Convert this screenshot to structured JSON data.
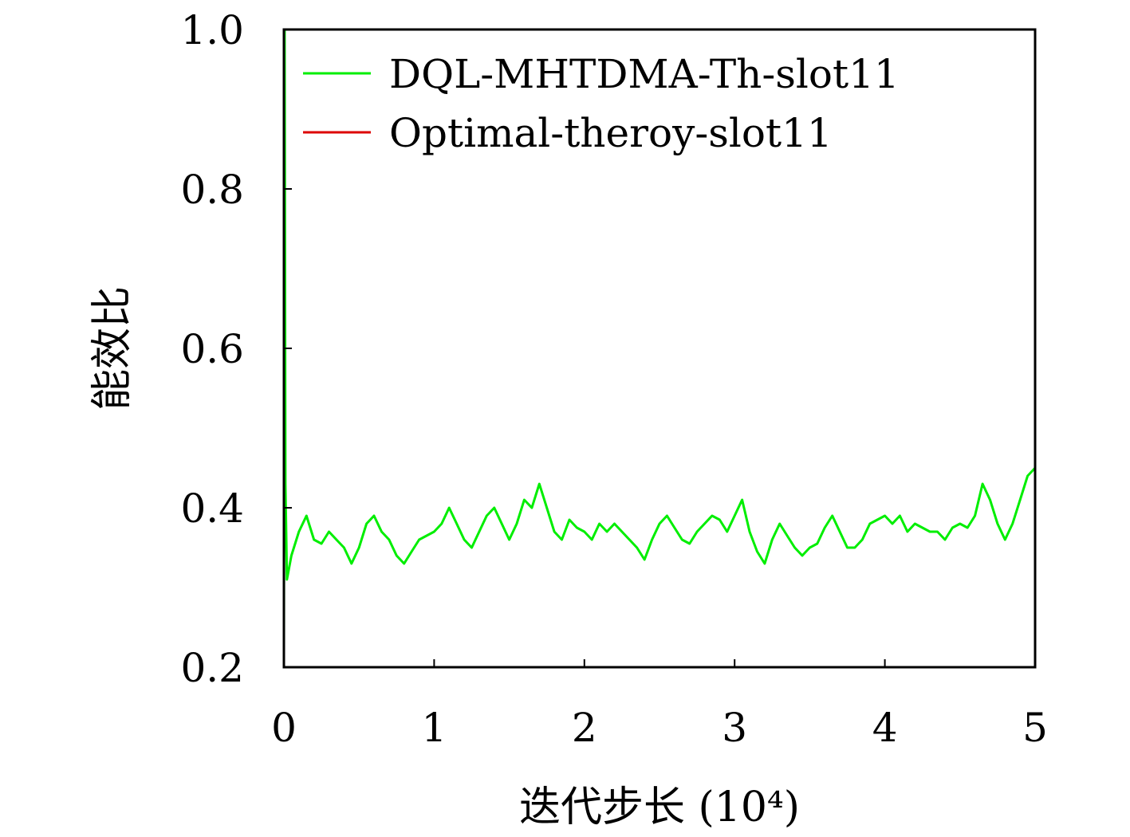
{
  "chart_data": {
    "type": "line",
    "xlabel": "迭代步长 (10⁴)",
    "ylabel": "能效比",
    "xlim": [
      0,
      5
    ],
    "ylim": [
      0.2,
      1.0
    ],
    "x_ticks": [
      "0",
      "1",
      "2",
      "3",
      "4",
      "5"
    ],
    "y_ticks": [
      "0.2",
      "0.4",
      "0.6",
      "0.8",
      "1.0"
    ],
    "grid": false,
    "legend_position": "top-right",
    "series": [
      {
        "name": "DQL-MHTDMA-Th-slot11",
        "color": "#00ee00",
        "points": [
          [
            0.0,
            0.22
          ],
          [
            0.005,
            1.0
          ],
          [
            0.01,
            0.43
          ],
          [
            0.02,
            0.31
          ],
          [
            0.05,
            0.34
          ],
          [
            0.1,
            0.37
          ],
          [
            0.15,
            0.39
          ],
          [
            0.2,
            0.36
          ],
          [
            0.25,
            0.355
          ],
          [
            0.3,
            0.37
          ],
          [
            0.35,
            0.36
          ],
          [
            0.4,
            0.35
          ],
          [
            0.45,
            0.33
          ],
          [
            0.5,
            0.35
          ],
          [
            0.55,
            0.38
          ],
          [
            0.6,
            0.39
          ],
          [
            0.65,
            0.37
          ],
          [
            0.7,
            0.36
          ],
          [
            0.75,
            0.34
          ],
          [
            0.8,
            0.33
          ],
          [
            0.85,
            0.345
          ],
          [
            0.9,
            0.36
          ],
          [
            0.95,
            0.365
          ],
          [
            1.0,
            0.37
          ],
          [
            1.05,
            0.38
          ],
          [
            1.1,
            0.4
          ],
          [
            1.15,
            0.38
          ],
          [
            1.2,
            0.36
          ],
          [
            1.25,
            0.35
          ],
          [
            1.3,
            0.37
          ],
          [
            1.35,
            0.39
          ],
          [
            1.4,
            0.4
          ],
          [
            1.45,
            0.38
          ],
          [
            1.5,
            0.36
          ],
          [
            1.55,
            0.38
          ],
          [
            1.6,
            0.41
          ],
          [
            1.65,
            0.4
          ],
          [
            1.7,
            0.43
          ],
          [
            1.75,
            0.4
          ],
          [
            1.8,
            0.37
          ],
          [
            1.85,
            0.36
          ],
          [
            1.9,
            0.385
          ],
          [
            1.95,
            0.375
          ],
          [
            2.0,
            0.37
          ],
          [
            2.05,
            0.36
          ],
          [
            2.1,
            0.38
          ],
          [
            2.15,
            0.37
          ],
          [
            2.2,
            0.38
          ],
          [
            2.25,
            0.37
          ],
          [
            2.3,
            0.36
          ],
          [
            2.35,
            0.35
          ],
          [
            2.4,
            0.335
          ],
          [
            2.45,
            0.36
          ],
          [
            2.5,
            0.38
          ],
          [
            2.55,
            0.39
          ],
          [
            2.6,
            0.375
          ],
          [
            2.65,
            0.36
          ],
          [
            2.7,
            0.355
          ],
          [
            2.75,
            0.37
          ],
          [
            2.8,
            0.38
          ],
          [
            2.85,
            0.39
          ],
          [
            2.9,
            0.385
          ],
          [
            2.95,
            0.37
          ],
          [
            3.0,
            0.39
          ],
          [
            3.05,
            0.41
          ],
          [
            3.1,
            0.37
          ],
          [
            3.15,
            0.345
          ],
          [
            3.2,
            0.33
          ],
          [
            3.25,
            0.36
          ],
          [
            3.3,
            0.38
          ],
          [
            3.35,
            0.365
          ],
          [
            3.4,
            0.35
          ],
          [
            3.45,
            0.34
          ],
          [
            3.5,
            0.35
          ],
          [
            3.55,
            0.355
          ],
          [
            3.6,
            0.375
          ],
          [
            3.65,
            0.39
          ],
          [
            3.7,
            0.37
          ],
          [
            3.75,
            0.35
          ],
          [
            3.8,
            0.35
          ],
          [
            3.85,
            0.36
          ],
          [
            3.9,
            0.38
          ],
          [
            3.95,
            0.385
          ],
          [
            4.0,
            0.39
          ],
          [
            4.05,
            0.38
          ],
          [
            4.1,
            0.39
          ],
          [
            4.15,
            0.37
          ],
          [
            4.2,
            0.38
          ],
          [
            4.25,
            0.375
          ],
          [
            4.3,
            0.37
          ],
          [
            4.35,
            0.37
          ],
          [
            4.4,
            0.36
          ],
          [
            4.45,
            0.375
          ],
          [
            4.5,
            0.38
          ],
          [
            4.55,
            0.375
          ],
          [
            4.6,
            0.39
          ],
          [
            4.65,
            0.43
          ],
          [
            4.7,
            0.41
          ],
          [
            4.75,
            0.38
          ],
          [
            4.8,
            0.36
          ],
          [
            4.85,
            0.38
          ],
          [
            4.9,
            0.41
          ],
          [
            4.95,
            0.44
          ],
          [
            5.0,
            0.45
          ]
        ]
      },
      {
        "name": "Optimal-theroy-slot11",
        "color": "#dd0000",
        "points": [
          [
            0.0,
            1.0
          ],
          [
            5.0,
            1.0
          ]
        ]
      }
    ]
  }
}
